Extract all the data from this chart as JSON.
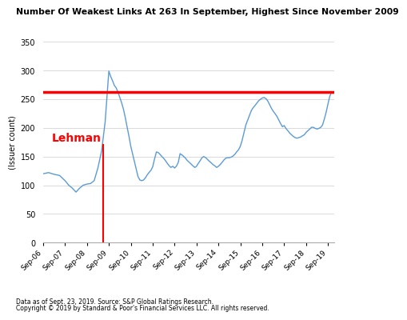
{
  "title": "Number Of Weakest Links At 263 In September, Highest Since November 2009",
  "ylabel": "(Issuer count)",
  "footnote1": "Data as of Sept. 23, 2019. Source: S&P Global Ratings Research.",
  "footnote2": "Copyright © 2019 by Standard & Poor's Financial Services LLC. All rights reserved.",
  "ylim": [
    0,
    350
  ],
  "yticks": [
    0,
    50,
    100,
    150,
    200,
    250,
    300,
    350
  ],
  "red_line_y": 263,
  "lehman_label": "Lehman",
  "lehman_x": 2008.75,
  "line_color": "#5b9bd5",
  "red_color": "#ff0000",
  "x_labels": [
    "Sep-06",
    "Sep-07",
    "Sep-08",
    "Sep-09",
    "Sep-10",
    "Sep-11",
    "Sep-12",
    "Sep-13",
    "Sep-14",
    "Sep-15",
    "Sep-16",
    "Sep-17",
    "Sep-18",
    "Sep-19"
  ],
  "xlim_start": 2006.0,
  "xlim_end": 2019.3,
  "series_x": [
    2006.0,
    2006.25,
    2006.5,
    2006.75,
    2007.0,
    2007.17,
    2007.33,
    2007.5,
    2007.67,
    2007.83,
    2008.0,
    2008.17,
    2008.33,
    2008.5,
    2008.67,
    2008.83,
    2009.0,
    2009.08,
    2009.17,
    2009.25,
    2009.33,
    2009.42,
    2009.5,
    2009.58,
    2009.67,
    2009.75,
    2009.83,
    2009.92,
    2010.0,
    2010.08,
    2010.17,
    2010.25,
    2010.33,
    2010.42,
    2010.5,
    2010.58,
    2010.67,
    2010.75,
    2010.83,
    2010.92,
    2011.0,
    2011.08,
    2011.17,
    2011.25,
    2011.33,
    2011.42,
    2011.5,
    2011.58,
    2011.67,
    2011.75,
    2011.83,
    2011.92,
    2012.0,
    2012.08,
    2012.17,
    2012.25,
    2012.33,
    2012.42,
    2012.5,
    2012.58,
    2012.67,
    2012.75,
    2012.83,
    2012.92,
    2013.0,
    2013.08,
    2013.17,
    2013.25,
    2013.33,
    2013.42,
    2013.5,
    2013.58,
    2013.67,
    2013.75,
    2013.83,
    2013.92,
    2014.0,
    2014.08,
    2014.17,
    2014.25,
    2014.33,
    2014.42,
    2014.5,
    2014.58,
    2014.67,
    2014.75,
    2014.83,
    2014.92,
    2015.0,
    2015.08,
    2015.17,
    2015.25,
    2015.33,
    2015.42,
    2015.5,
    2015.58,
    2015.67,
    2015.75,
    2015.83,
    2015.92,
    2016.0,
    2016.08,
    2016.17,
    2016.25,
    2016.33,
    2016.42,
    2016.5,
    2016.58,
    2016.67,
    2016.75,
    2016.83,
    2016.92,
    2017.0,
    2017.08,
    2017.17,
    2017.25,
    2017.33,
    2017.42,
    2017.5,
    2017.58,
    2017.67,
    2017.75,
    2017.83,
    2017.92,
    2018.0,
    2018.08,
    2018.17,
    2018.25,
    2018.33,
    2018.42,
    2018.5,
    2018.58,
    2018.67,
    2018.75,
    2018.83,
    2018.92,
    2019.0,
    2019.08,
    2019.17
  ],
  "series_y": [
    120,
    122,
    119,
    117,
    108,
    100,
    95,
    88,
    95,
    100,
    102,
    103,
    108,
    130,
    160,
    210,
    299,
    290,
    282,
    274,
    270,
    262,
    253,
    244,
    232,
    218,
    202,
    185,
    168,
    155,
    140,
    128,
    115,
    109,
    108,
    109,
    113,
    118,
    122,
    126,
    132,
    145,
    158,
    157,
    154,
    150,
    147,
    143,
    138,
    134,
    131,
    133,
    130,
    133,
    140,
    155,
    153,
    150,
    147,
    143,
    140,
    137,
    134,
    131,
    133,
    138,
    143,
    148,
    150,
    148,
    145,
    142,
    139,
    136,
    134,
    131,
    133,
    136,
    140,
    144,
    147,
    148,
    148,
    149,
    151,
    154,
    158,
    162,
    168,
    178,
    192,
    205,
    213,
    222,
    230,
    235,
    239,
    243,
    247,
    250,
    252,
    253,
    251,
    247,
    241,
    234,
    229,
    225,
    220,
    214,
    208,
    202,
    204,
    199,
    195,
    191,
    188,
    185,
    183,
    182,
    183,
    184,
    186,
    188,
    192,
    195,
    198,
    201,
    201,
    199,
    198,
    199,
    201,
    205,
    215,
    228,
    242,
    255,
    263
  ]
}
